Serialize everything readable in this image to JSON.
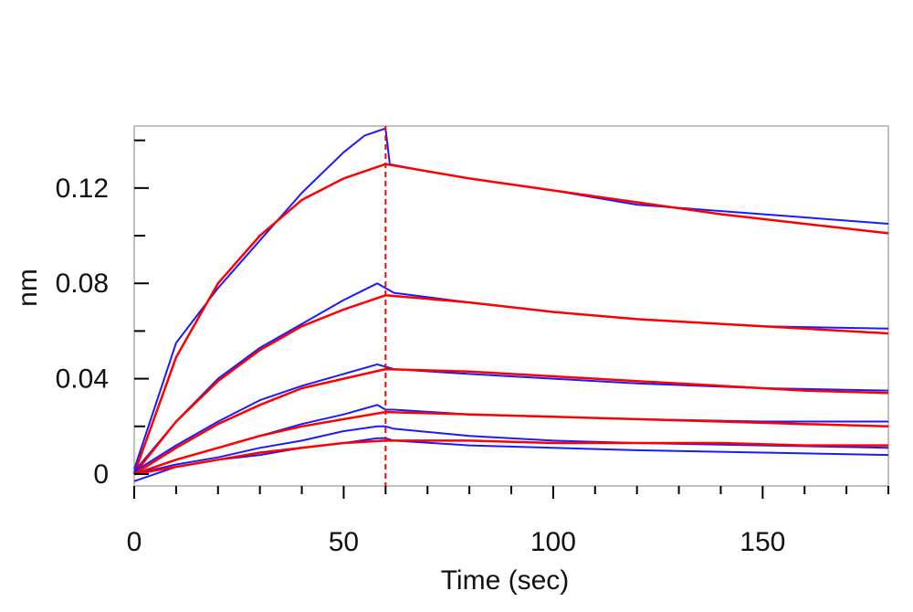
{
  "chart_data": {
    "type": "line",
    "xlabel": "Time (sec)",
    "ylabel": "nm",
    "xlim": [
      0,
      180
    ],
    "ylim": [
      -0.005,
      0.146
    ],
    "x_ticks": [
      0,
      50,
      100,
      150
    ],
    "x_tick_labels": [
      "0",
      "50",
      "100",
      "150"
    ],
    "y_ticks": [
      0,
      0.04,
      0.08,
      0.12
    ],
    "y_tick_labels": [
      "0",
      "0.04",
      "0.08",
      "0.12"
    ],
    "grid": false,
    "legend": "none",
    "vertical_marker_x": 60,
    "colors": {
      "measured": "#1a1aff",
      "fit": "#ff0000",
      "marker": "#ff0000",
      "frame": "#c0c0c0"
    },
    "series": [
      {
        "kind": "measured",
        "x": [
          0,
          10,
          20,
          30,
          40,
          50,
          55,
          60,
          61,
          70,
          80,
          100,
          120,
          150,
          180
        ],
        "y": [
          0.002,
          0.055,
          0.078,
          0.098,
          0.118,
          0.135,
          0.142,
          0.145,
          0.13,
          0.127,
          0.124,
          0.119,
          0.113,
          0.109,
          0.105
        ]
      },
      {
        "kind": "fit",
        "x": [
          0,
          10,
          20,
          30,
          40,
          50,
          60,
          80,
          100,
          120,
          140,
          160,
          180
        ],
        "y": [
          0.0,
          0.049,
          0.08,
          0.1,
          0.115,
          0.124,
          0.13,
          0.124,
          0.119,
          0.114,
          0.109,
          0.105,
          0.101
        ]
      },
      {
        "kind": "measured",
        "x": [
          0,
          10,
          20,
          30,
          40,
          50,
          58,
          60,
          62,
          80,
          100,
          120,
          150,
          180
        ],
        "y": [
          0.001,
          0.022,
          0.04,
          0.053,
          0.063,
          0.073,
          0.08,
          0.078,
          0.076,
          0.072,
          0.068,
          0.065,
          0.062,
          0.061
        ]
      },
      {
        "kind": "fit",
        "x": [
          0,
          10,
          20,
          30,
          40,
          50,
          60,
          80,
          100,
          120,
          140,
          160,
          180
        ],
        "y": [
          0.0,
          0.022,
          0.039,
          0.052,
          0.062,
          0.069,
          0.075,
          0.072,
          0.068,
          0.065,
          0.063,
          0.061,
          0.059
        ]
      },
      {
        "kind": "measured",
        "x": [
          0,
          10,
          20,
          30,
          40,
          50,
          58,
          60,
          62,
          80,
          100,
          120,
          150,
          180
        ],
        "y": [
          0.001,
          0.012,
          0.022,
          0.031,
          0.037,
          0.042,
          0.046,
          0.045,
          0.044,
          0.042,
          0.04,
          0.038,
          0.036,
          0.035
        ]
      },
      {
        "kind": "fit",
        "x": [
          0,
          10,
          20,
          30,
          40,
          50,
          60,
          80,
          100,
          120,
          140,
          160,
          180
        ],
        "y": [
          0.0,
          0.011,
          0.021,
          0.029,
          0.036,
          0.04,
          0.044,
          0.043,
          0.041,
          0.039,
          0.037,
          0.035,
          0.034
        ]
      },
      {
        "kind": "measured",
        "x": [
          0,
          10,
          20,
          30,
          40,
          50,
          58,
          60,
          62,
          80,
          100,
          120,
          150,
          180
        ],
        "y": [
          0.0,
          0.006,
          0.011,
          0.016,
          0.021,
          0.025,
          0.029,
          0.027,
          0.027,
          0.025,
          0.024,
          0.023,
          0.022,
          0.022
        ]
      },
      {
        "kind": "fit",
        "x": [
          0,
          10,
          20,
          30,
          40,
          50,
          60,
          80,
          100,
          120,
          140,
          160,
          180
        ],
        "y": [
          0.0,
          0.006,
          0.011,
          0.016,
          0.02,
          0.023,
          0.026,
          0.025,
          0.024,
          0.023,
          0.022,
          0.021,
          0.02
        ]
      },
      {
        "kind": "measured",
        "x": [
          0,
          10,
          20,
          30,
          40,
          50,
          58,
          60,
          62,
          80,
          100,
          120,
          150,
          180
        ],
        "y": [
          0.0,
          0.004,
          0.007,
          0.011,
          0.014,
          0.018,
          0.02,
          0.02,
          0.019,
          0.016,
          0.014,
          0.013,
          0.012,
          0.011
        ]
      },
      {
        "kind": "measured",
        "x": [
          0,
          10,
          20,
          30,
          40,
          50,
          58,
          60,
          62,
          80,
          100,
          120,
          150,
          180
        ],
        "y": [
          -0.003,
          0.003,
          0.006,
          0.008,
          0.011,
          0.013,
          0.015,
          0.015,
          0.014,
          0.012,
          0.011,
          0.01,
          0.009,
          0.008
        ]
      },
      {
        "kind": "fit",
        "x": [
          0,
          10,
          20,
          30,
          40,
          50,
          60,
          80,
          100,
          120,
          140,
          160,
          180
        ],
        "y": [
          0.0,
          0.003,
          0.006,
          0.009,
          0.011,
          0.013,
          0.014,
          0.014,
          0.013,
          0.013,
          0.013,
          0.012,
          0.012
        ]
      }
    ]
  }
}
